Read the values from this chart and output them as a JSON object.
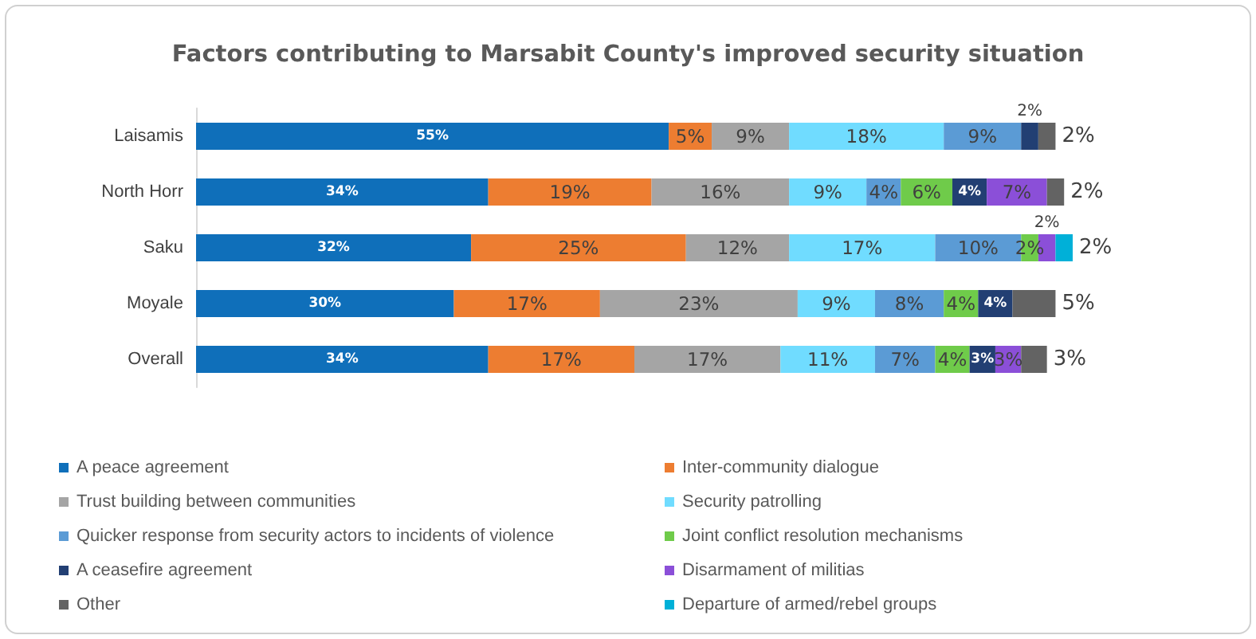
{
  "chart_data": {
    "type": "bar",
    "orientation": "horizontal",
    "stacked": true,
    "title": "Factors contributing to Marsabit County's improved security situation",
    "categories": [
      "Laisamis",
      "North Horr",
      "Saku",
      "Moyale",
      "Overall"
    ],
    "series": [
      {
        "name": "A peace agreement",
        "color": "#0f6fba",
        "values": [
          55,
          34,
          32,
          30,
          34
        ],
        "value_labels": [
          "55%",
          "34%",
          "32%",
          "30%",
          "34%"
        ]
      },
      {
        "name": "Inter-community dialogue",
        "color": "#ed7d31",
        "values": [
          5,
          19,
          25,
          17,
          17
        ],
        "value_labels": [
          "5%",
          "19%",
          "25%",
          "17%",
          "17%"
        ]
      },
      {
        "name": "Trust building between communities",
        "color": "#a5a5a5",
        "values": [
          9,
          16,
          12,
          23,
          17
        ],
        "value_labels": [
          "9%",
          "16%",
          "12%",
          "23%",
          "17%"
        ]
      },
      {
        "name": "Security patrolling",
        "color": "#70dcff",
        "values": [
          18,
          9,
          17,
          9,
          11
        ],
        "value_labels": [
          "18%",
          "9%",
          "17%",
          "9%",
          "11%"
        ]
      },
      {
        "name": "Quicker response from security actors to incidents of violence",
        "color": "#5b9bd5",
        "values": [
          9,
          4,
          10,
          8,
          7
        ],
        "value_labels": [
          "9%",
          "4%",
          "10%",
          "8%",
          "7%"
        ]
      },
      {
        "name": "Joint conflict resolution mechanisms",
        "color": "#6fcb4a",
        "values": [
          null,
          6,
          2,
          4,
          4
        ],
        "value_labels": [
          null,
          "6%",
          "2%",
          "4%",
          "4%"
        ]
      },
      {
        "name": "A ceasefire agreement",
        "color": "#223f73",
        "values": [
          2,
          4,
          null,
          4,
          3
        ],
        "value_labels": [
          "2%",
          "4%",
          null,
          "4%",
          "3%"
        ]
      },
      {
        "name": "Disarmament of militias",
        "color": "#8b4fd8",
        "values": [
          null,
          7,
          2,
          null,
          3
        ],
        "value_labels": [
          null,
          "7%",
          "2%",
          null,
          "3%"
        ]
      },
      {
        "name": "Other",
        "color": "#636363",
        "values": [
          2,
          2,
          null,
          5,
          3
        ],
        "value_labels": [
          "2%",
          "2%",
          null,
          "5%",
          "3%"
        ]
      },
      {
        "name": "Departure of armed/rebel groups",
        "color": "#00b0d8",
        "values": [
          null,
          null,
          2,
          null,
          null
        ],
        "value_labels": [
          null,
          null,
          "2%",
          null,
          null
        ]
      }
    ],
    "legend": "bottom"
  }
}
